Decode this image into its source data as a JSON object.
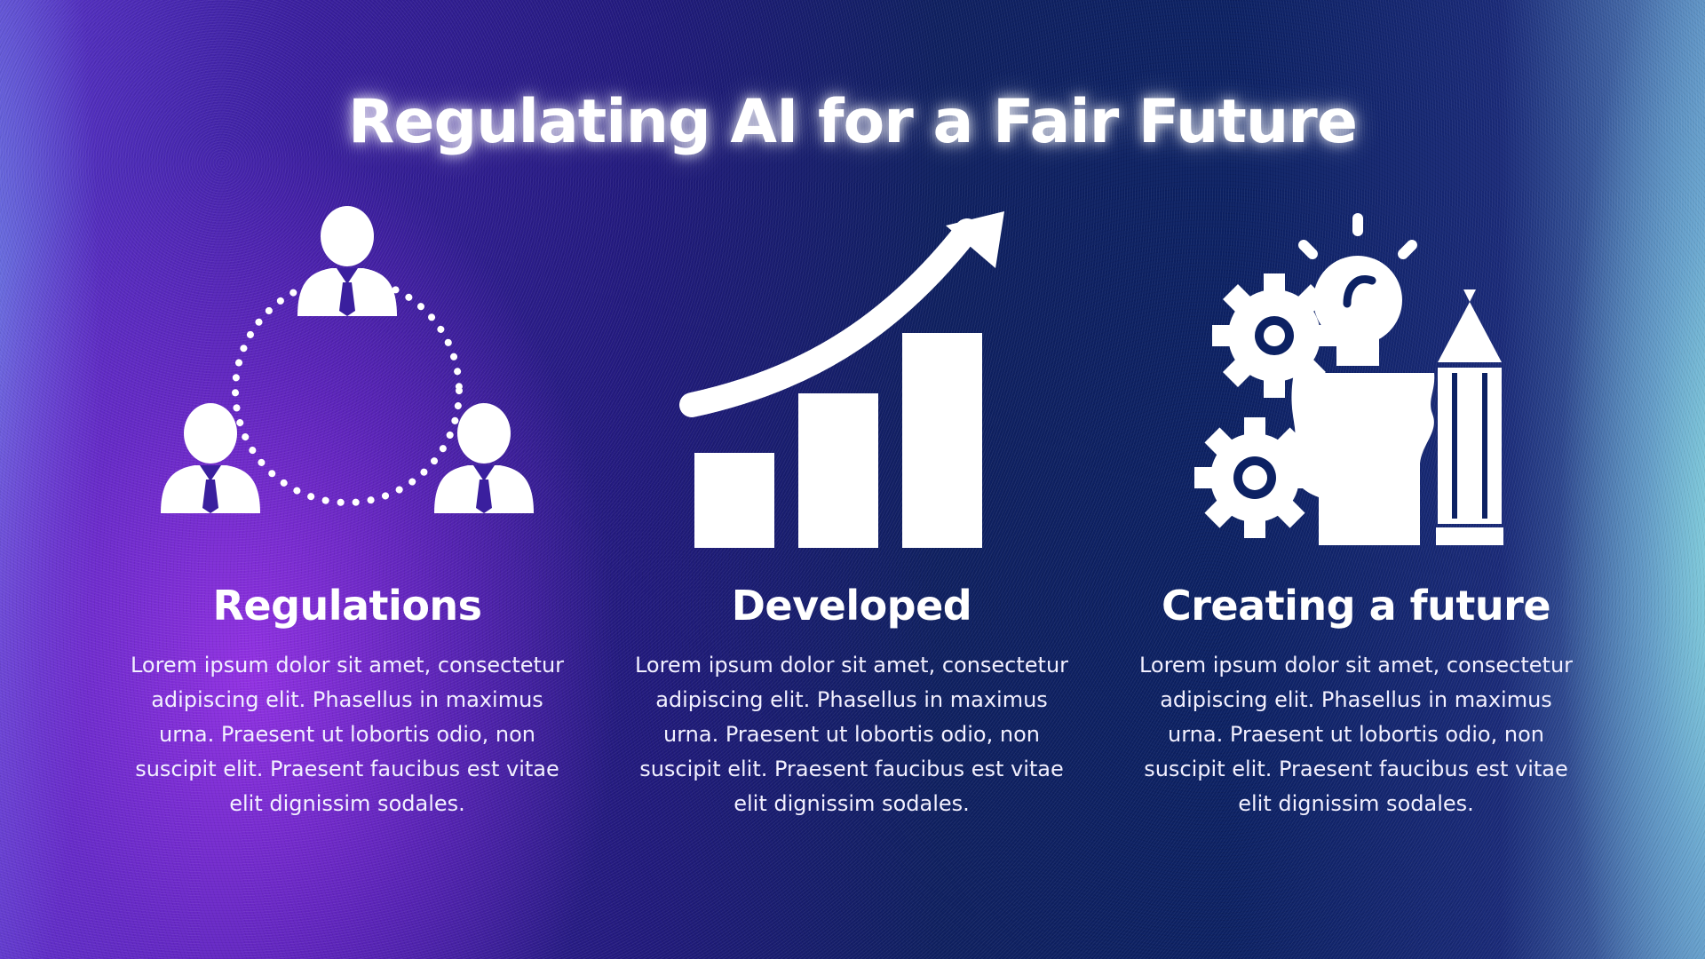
{
  "slide": {
    "title": "Regulating AI for a Fair Future",
    "colors": {
      "text": "#ffffff",
      "background_left": "#8a2be2",
      "background_center": "#0c2163",
      "background_right": "#8ae0e0"
    },
    "columns": [
      {
        "icon": "people-network-icon",
        "heading": "Regulations",
        "body": "Lorem ipsum dolor sit amet, consectetur adipiscing elit. Phasellus in maximus urna. Praesent ut lobortis odio, non suscipit elit. Praesent faucibus est vitae elit dignissim sodales."
      },
      {
        "icon": "growth-chart-icon",
        "heading": "Developed",
        "body": "Lorem ipsum dolor sit amet, consectetur adipiscing elit. Phasellus in maximus urna. Praesent ut lobortis odio, non suscipit elit. Praesent faucibus est vitae elit dignissim sodales."
      },
      {
        "icon": "creative-mind-icon",
        "heading": "Creating a future",
        "body": "Lorem ipsum dolor sit amet, consectetur adipiscing elit. Phasellus in maximus urna. Praesent ut lobortis odio, non suscipit elit. Praesent faucibus est vitae elit dignissim sodales."
      }
    ]
  }
}
